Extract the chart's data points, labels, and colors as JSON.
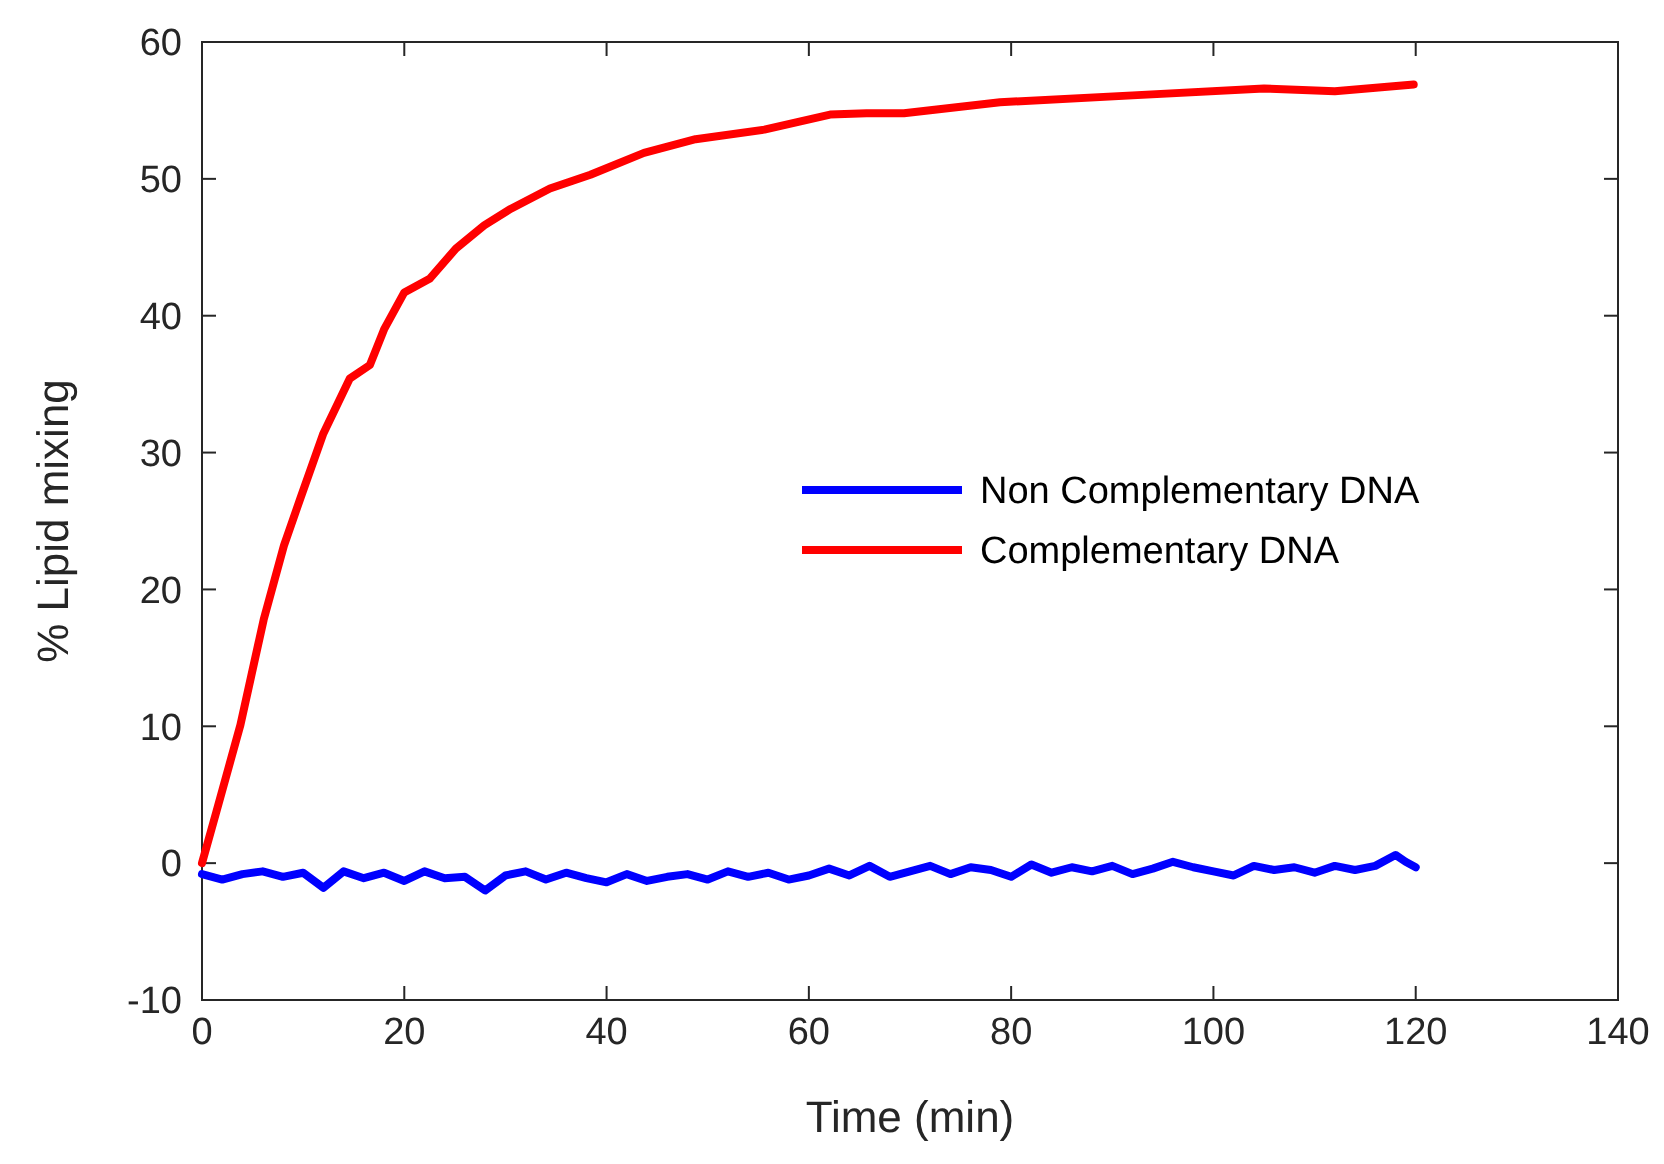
{
  "chart_data": {
    "type": "line",
    "xlabel": "Time (min)",
    "ylabel": "% Lipid mixing",
    "xlim": [
      0,
      140
    ],
    "xticks": [
      0,
      20,
      40,
      60,
      80,
      100,
      120,
      140
    ],
    "ylim": [
      -10,
      60
    ],
    "yticks": [
      -10,
      0,
      10,
      20,
      30,
      40,
      50,
      60
    ],
    "grid": false,
    "legend": "right",
    "line_style": "solid",
    "marker": "none",
    "series": [
      {
        "name": "Non Complementary DNA",
        "color": "#0000ff",
        "x": [
          0,
          2,
          4,
          6,
          8,
          10,
          12,
          14,
          16,
          18,
          20,
          22,
          24,
          26,
          28,
          30,
          32,
          34,
          36,
          38,
          40,
          42,
          44,
          46,
          48,
          50,
          52,
          54,
          56,
          58,
          60,
          62,
          64,
          66,
          68,
          70,
          72,
          74,
          76,
          78,
          80,
          82,
          84,
          86,
          88,
          90,
          92,
          94,
          96,
          98,
          100,
          102,
          104,
          106,
          108,
          110,
          112,
          114,
          116,
          118,
          119,
          120
        ],
        "values": [
          -0.8,
          -1.2,
          -0.8,
          -0.6,
          -1,
          -0.7,
          -1.8,
          -0.6,
          -1.1,
          -0.7,
          -1.3,
          -0.6,
          -1.1,
          -1,
          -2,
          -0.9,
          -0.6,
          -1.2,
          -0.7,
          -1.1,
          -1.4,
          -0.8,
          -1.3,
          -1,
          -0.8,
          -1.2,
          -0.6,
          -1,
          -0.7,
          -1.2,
          -0.9,
          -0.4,
          -0.9,
          -0.2,
          -1,
          -0.6,
          -0.2,
          -0.8,
          -0.3,
          -0.5,
          -1,
          -0.1,
          -0.7,
          -0.3,
          -0.6,
          -0.2,
          -0.8,
          -0.4,
          0.1,
          -0.3,
          -0.6,
          -0.9,
          -0.2,
          -0.5,
          -0.3,
          -0.7,
          -0.2,
          -0.5,
          -0.2,
          0.6,
          0.1,
          -0.3
        ]
      },
      {
        "name": "Complementary DNA",
        "color": "#ff0000",
        "x": [
          0,
          1.4,
          3.8,
          6.1,
          8.1,
          9.7,
          12,
          14.6,
          16.6,
          18,
          20,
          22.5,
          25.1,
          27.9,
          30.5,
          34.4,
          38.4,
          43.7,
          48.8,
          55.6,
          62.1,
          65.7,
          69.4,
          78.9,
          92,
          105,
          112,
          119.8
        ],
        "values": [
          0,
          3.7,
          10.1,
          17.8,
          23.2,
          26.6,
          31.4,
          35.4,
          36.4,
          39,
          41.7,
          42.7,
          44.9,
          46.6,
          47.8,
          49.3,
          50.3,
          51.9,
          52.9,
          53.6,
          54.7,
          54.8,
          54.8,
          55.6,
          56.1,
          56.6,
          56.4,
          56.9
        ]
      }
    ]
  }
}
